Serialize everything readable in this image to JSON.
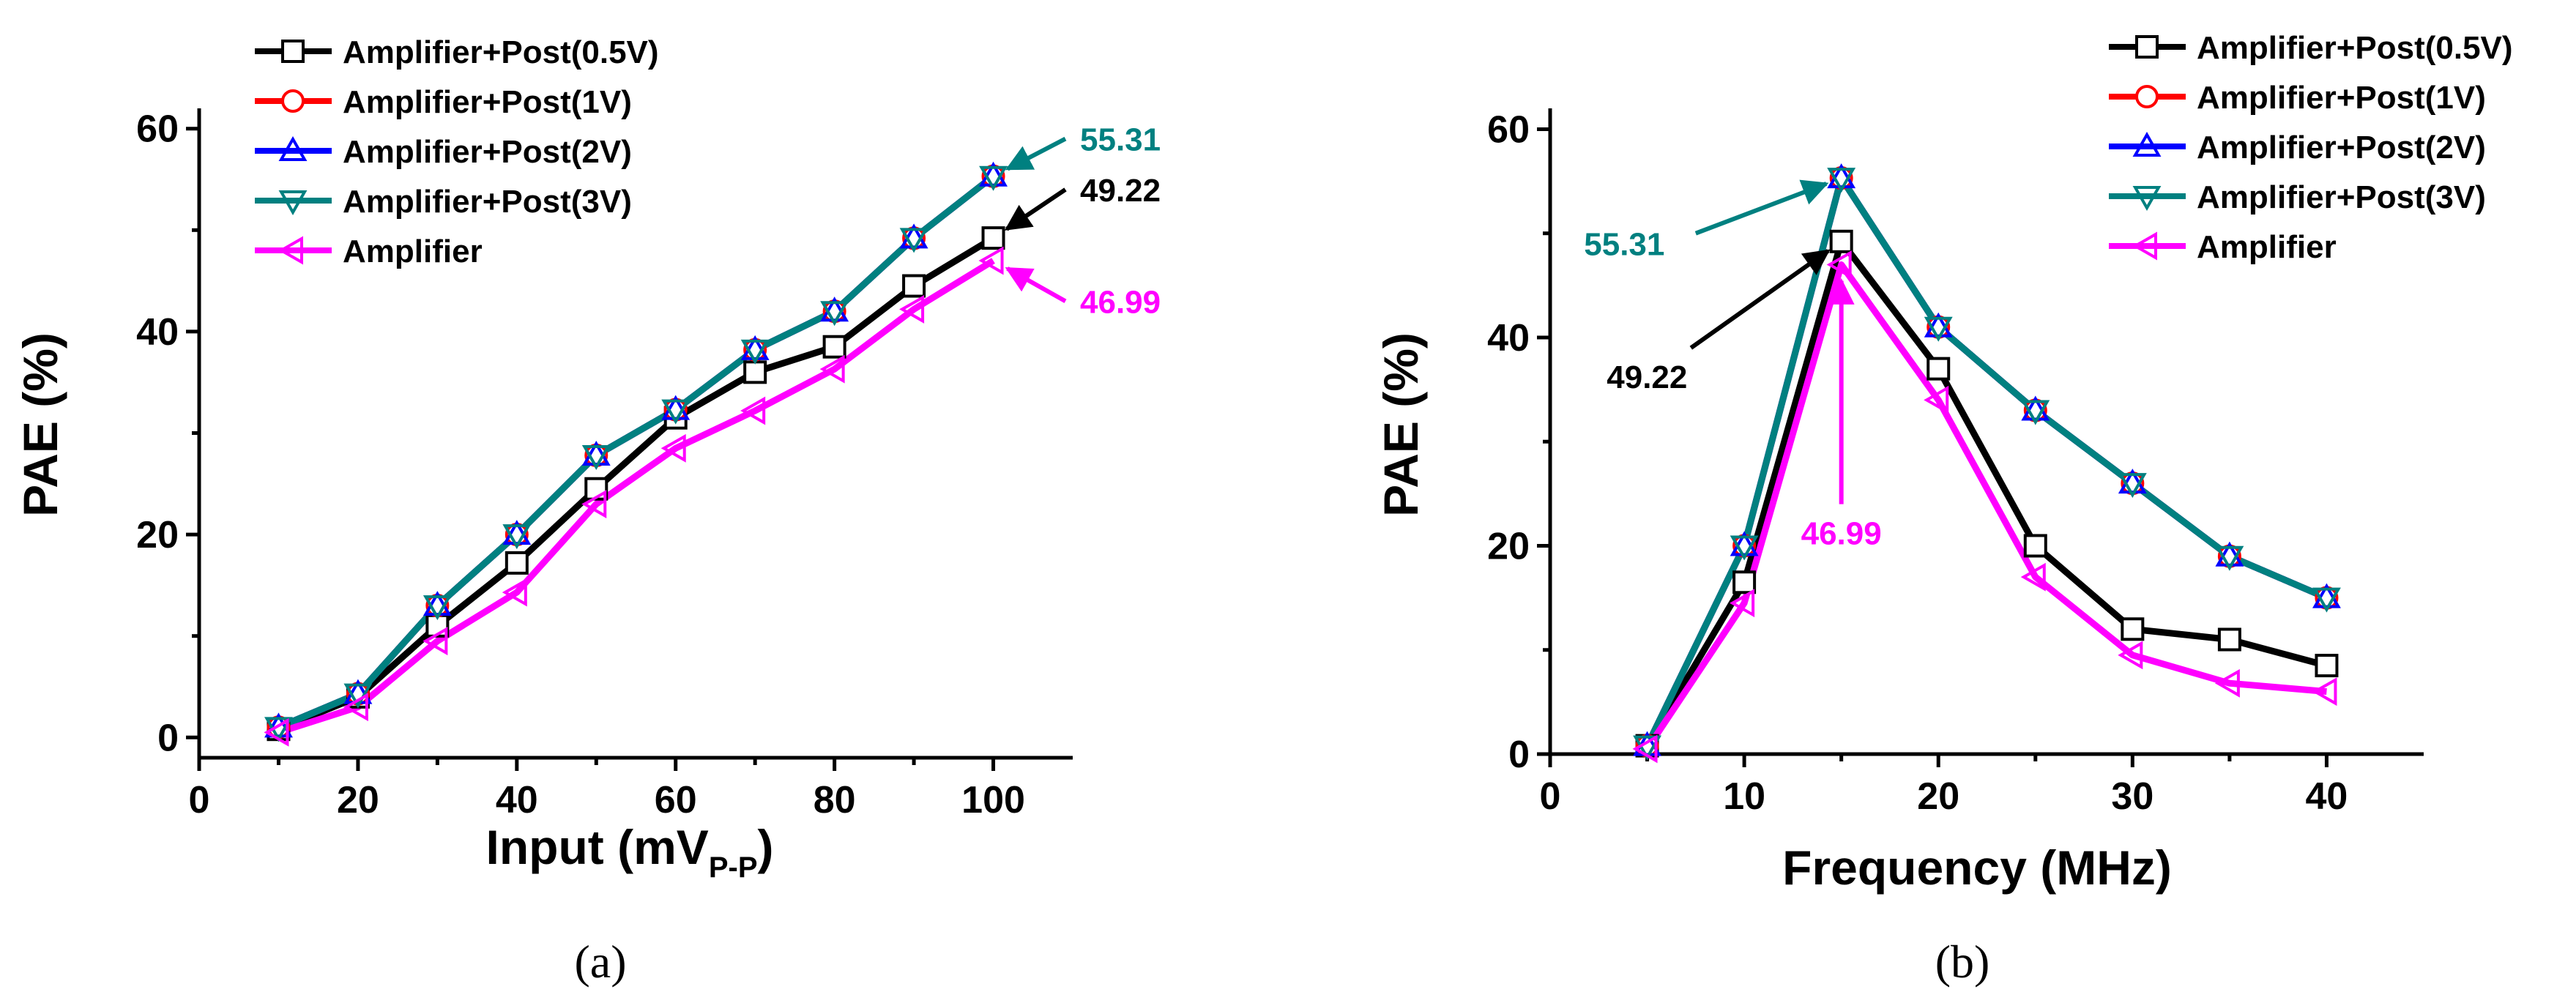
{
  "chart_data": [
    {
      "type": "line",
      "panel": "a",
      "caption": "(a)",
      "ylabel": "PAE (%)",
      "xlabel_main": "Input (mV",
      "xlabel_sub": "P-P",
      "xlabel_close": ")",
      "xlim": [
        0,
        110
      ],
      "ylim": [
        -2,
        62
      ],
      "xticks": [
        0,
        20,
        40,
        60,
        80,
        100
      ],
      "yticks": [
        0,
        20,
        40,
        60
      ],
      "x": [
        10,
        20,
        30,
        40,
        50,
        60,
        70,
        80,
        90,
        100
      ],
      "series": [
        {
          "name": "Amplifier+Post(0.5V)",
          "color": "#000000",
          "marker": "square",
          "values": [
            0.8,
            4.0,
            11.0,
            17.2,
            24.5,
            31.5,
            36.0,
            38.5,
            44.5,
            49.22
          ]
        },
        {
          "name": "Amplifier+Post(1V)",
          "color": "#ff0000",
          "marker": "circle",
          "values": [
            1.0,
            4.3,
            13.0,
            20.0,
            27.8,
            32.3,
            38.2,
            42.0,
            49.2,
            55.31
          ]
        },
        {
          "name": "Amplifier+Post(2V)",
          "color": "#0000ff",
          "marker": "triangle-up",
          "values": [
            1.0,
            4.3,
            13.0,
            20.0,
            27.8,
            32.3,
            38.2,
            42.0,
            49.2,
            55.31
          ]
        },
        {
          "name": "Amplifier+Post(3V)",
          "color": "#008080",
          "marker": "triangle-down",
          "values": [
            1.0,
            4.3,
            13.0,
            20.0,
            27.8,
            32.3,
            38.2,
            42.0,
            49.2,
            55.31
          ]
        },
        {
          "name": "Amplifier",
          "color": "#ff00ff",
          "marker": "triangle-left",
          "values": [
            0.5,
            3.0,
            9.5,
            14.3,
            23.0,
            28.5,
            32.2,
            36.3,
            42.2,
            46.99
          ]
        }
      ],
      "annotations": [
        {
          "text": "55.31",
          "color": "#008080",
          "target": [
            100,
            55.31
          ],
          "label_at": [
            110,
            59
          ]
        },
        {
          "text": "49.22",
          "color": "#000000",
          "target": [
            100,
            49.22
          ],
          "label_at": [
            110,
            54
          ]
        },
        {
          "text": "46.99",
          "color": "#ff00ff",
          "target": [
            100,
            46.99
          ],
          "label_at": [
            110,
            43
          ]
        }
      ],
      "legend_position": "top-left"
    },
    {
      "type": "line",
      "panel": "b",
      "caption": "(b)",
      "ylabel": "PAE (%)",
      "xlabel": "Frequency (MHz)",
      "xlim": [
        0,
        45
      ],
      "ylim": [
        0,
        62
      ],
      "xticks": [
        0,
        10,
        20,
        30,
        40
      ],
      "yticks": [
        0,
        20,
        40,
        60
      ],
      "x": [
        5,
        10,
        15,
        20,
        25,
        30,
        35,
        40
      ],
      "series": [
        {
          "name": "Amplifier+Post(0.5V)",
          "color": "#000000",
          "marker": "square",
          "values": [
            0.8,
            16.5,
            49.22,
            37.0,
            20.0,
            12.0,
            11.0,
            8.5
          ]
        },
        {
          "name": "Amplifier+Post(1V)",
          "color": "#ff0000",
          "marker": "circle",
          "values": [
            0.8,
            20.0,
            55.31,
            41.0,
            33.0,
            26.0,
            19.0,
            15.0
          ]
        },
        {
          "name": "Amplifier+Post(2V)",
          "color": "#0000ff",
          "marker": "triangle-up",
          "values": [
            0.8,
            20.0,
            55.31,
            41.0,
            33.0,
            26.0,
            19.0,
            15.0
          ]
        },
        {
          "name": "Amplifier+Post(3V)",
          "color": "#008080",
          "marker": "triangle-down",
          "values": [
            0.8,
            20.0,
            55.31,
            41.0,
            33.0,
            26.0,
            19.0,
            15.0
          ]
        },
        {
          "name": "Amplifier",
          "color": "#ff00ff",
          "marker": "triangle-left",
          "values": [
            0.5,
            14.5,
            46.99,
            34.0,
            17.0,
            9.5,
            6.8,
            6.0
          ]
        }
      ],
      "annotations": [
        {
          "text": "55.31",
          "color": "#008080",
          "target": [
            15,
            55.31
          ],
          "label_at": [
            2.5,
            50
          ]
        },
        {
          "text": "49.22",
          "color": "#000000",
          "target": [
            15,
            49.22
          ],
          "label_at": [
            6.5,
            39
          ]
        },
        {
          "text": "46.99",
          "color": "#ff00ff",
          "target": [
            15,
            46.99
          ],
          "label_at": [
            15,
            24
          ]
        }
      ],
      "legend_position": "top-right"
    }
  ]
}
